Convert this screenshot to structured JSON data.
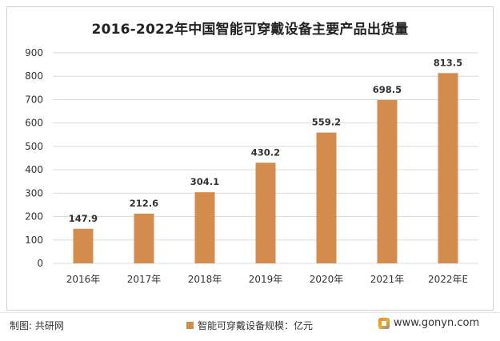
{
  "chart_data": {
    "type": "bar",
    "title": "2016-2022年中国智能可穿戴设备主要产品出货量",
    "categories": [
      "2016年",
      "2017年",
      "2018年",
      "2019年",
      "2020年",
      "2021年",
      "2022年E"
    ],
    "values": [
      147.9,
      212.6,
      304.1,
      430.2,
      559.2,
      698.5,
      813.5
    ],
    "data_labels": [
      "147.9",
      "212.6",
      "304.1",
      "430.2",
      "559.2",
      "698.5",
      "813.5"
    ],
    "series_name": "智能可穿戴设备规模：亿元",
    "ylim": [
      0,
      900
    ],
    "yticks": [
      0,
      100,
      200,
      300,
      400,
      500,
      600,
      700,
      800,
      900
    ],
    "grid": true,
    "legend_position": "bottom",
    "bar_color": "#D48C4C",
    "grid_color": "#D9D9D9"
  },
  "footer": {
    "credit": "制图: 共研网",
    "site": "www.gonyn.com"
  }
}
